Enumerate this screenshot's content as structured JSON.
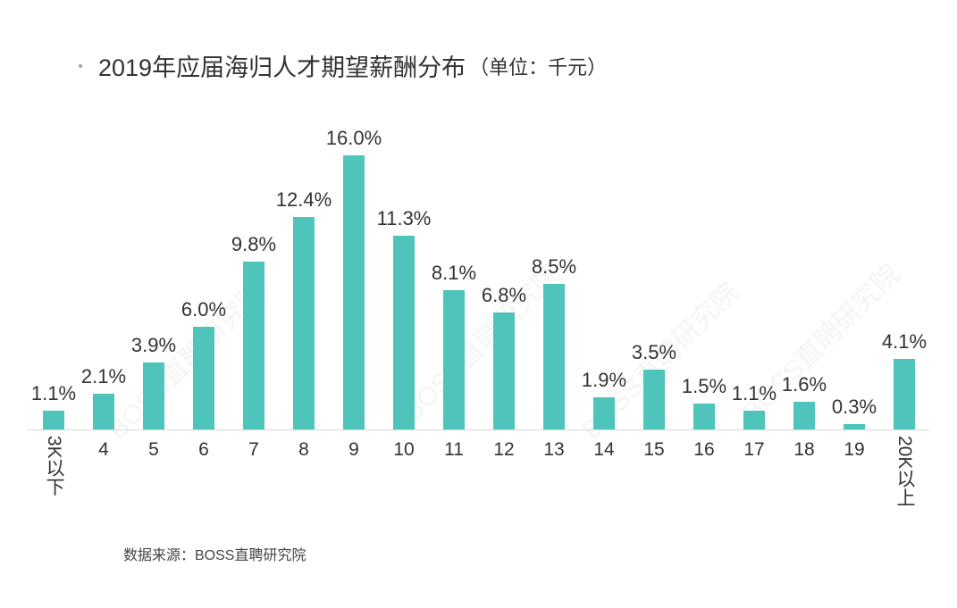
{
  "header": {
    "title": "2019年应届海归人才期望薪酬分布",
    "unit": "（单位：千元）"
  },
  "footer": {
    "source": "数据来源：BOSS直聘研究院"
  },
  "watermark": "BOSS直聘研究院",
  "colors": {
    "bar": "#4fc4bb",
    "text": "#333333",
    "axis": "#d6dcdc"
  },
  "chart_data": {
    "type": "bar",
    "title": "2019年应届海归人才期望薪酬分布（单位：千元）",
    "xlabel": "",
    "ylabel": "",
    "categories": [
      "3K以下",
      "4",
      "5",
      "6",
      "7",
      "8",
      "9",
      "10",
      "11",
      "12",
      "13",
      "14",
      "15",
      "16",
      "17",
      "18",
      "19",
      "20K以上"
    ],
    "values": [
      1.1,
      2.1,
      3.9,
      6.0,
      9.8,
      12.4,
      16.0,
      11.3,
      8.1,
      6.8,
      8.5,
      1.9,
      3.5,
      1.5,
      1.1,
      1.6,
      0.3,
      4.1
    ],
    "labels": [
      "1.1%",
      "2.1%",
      "3.9%",
      "6.0%",
      "9.8%",
      "12.4%",
      "16.0%",
      "11.3%",
      "8.1%",
      "6.8%",
      "8.5%",
      "1.9%",
      "3.5%",
      "1.5%",
      "1.1%",
      "1.6%",
      "0.3%",
      "4.1%"
    ],
    "unit": "%",
    "ylim": [
      0,
      16.0
    ],
    "grid": false,
    "legend": null,
    "source": "数据来源：BOSS直聘研究院"
  }
}
